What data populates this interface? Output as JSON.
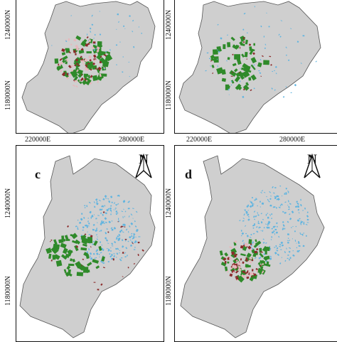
{
  "panels": [
    {
      "id": "a",
      "letter": ""
    },
    {
      "id": "b",
      "letter": ""
    },
    {
      "id": "c",
      "letter": "c"
    },
    {
      "id": "d",
      "letter": "d"
    }
  ],
  "north_arrow": {
    "label": "N"
  },
  "axes": {
    "x_ticks": [
      "220000E",
      "280000E"
    ],
    "y_ticks_top": [
      "1240000N",
      "1180000N"
    ],
    "y_ticks_bottom": [
      "1240000N",
      "1180000N"
    ]
  },
  "colors": {
    "background_land": "#cfcfcf",
    "forest": "#2f8a2a",
    "urban": "#5fb4e0",
    "degraded": "#8b2b2b",
    "open_land": "#e6b8bc",
    "frame": "#111111"
  }
}
